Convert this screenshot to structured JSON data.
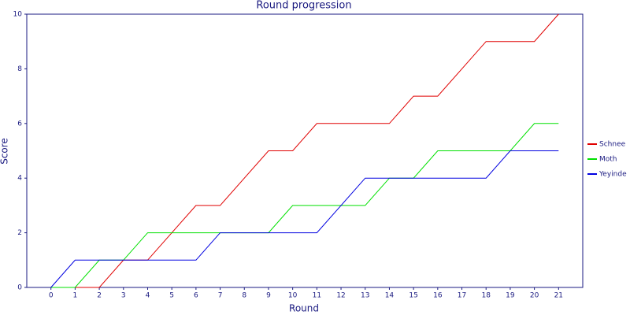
{
  "chart_data": {
    "type": "line",
    "title": "Round progression",
    "x_label": "Round",
    "y_label": "Score",
    "x": [
      0,
      1,
      2,
      3,
      4,
      5,
      6,
      7,
      8,
      9,
      10,
      11,
      12,
      13,
      14,
      15,
      16,
      17,
      18,
      19,
      20,
      21
    ],
    "series": [
      {
        "name": "Schnee",
        "color": "#e00000",
        "values": [
          0,
          0,
          0,
          1,
          1,
          2,
          3,
          3,
          4,
          5,
          5,
          6,
          6,
          6,
          6,
          7,
          7,
          8,
          9,
          9,
          9,
          10
        ]
      },
      {
        "name": "Moth",
        "color": "#00e000",
        "values": [
          0,
          0,
          1,
          1,
          2,
          2,
          2,
          2,
          2,
          2,
          3,
          3,
          3,
          3,
          4,
          4,
          5,
          5,
          5,
          5,
          6,
          6
        ]
      },
      {
        "name": "Yeyinde",
        "color": "#0000e0",
        "values": [
          0,
          1,
          1,
          1,
          1,
          1,
          1,
          2,
          2,
          2,
          2,
          2,
          3,
          4,
          4,
          4,
          4,
          4,
          4,
          5,
          5,
          5
        ]
      }
    ],
    "xlim": [
      -1,
      22
    ],
    "xticks": [
      0,
      1,
      2,
      3,
      4,
      5,
      6,
      7,
      8,
      9,
      10,
      11,
      12,
      13,
      14,
      15,
      16,
      17,
      18,
      19,
      20,
      21
    ],
    "ylim": [
      0,
      10
    ],
    "yticks": [
      0,
      2,
      4,
      6,
      8,
      10
    ],
    "legend": "right"
  }
}
